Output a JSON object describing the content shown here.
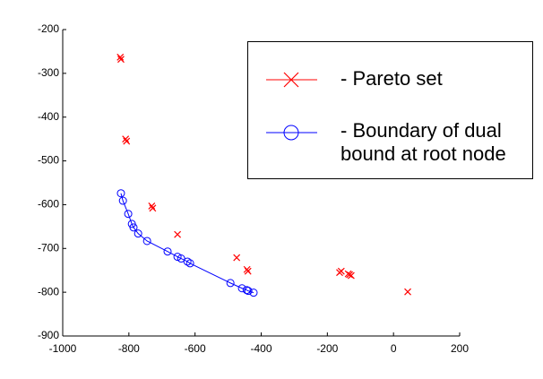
{
  "chart_data": {
    "type": "scatter",
    "xlim": [
      -1000,
      200
    ],
    "xticks": [
      -1000,
      -800,
      -600,
      -400,
      -200,
      0,
      200
    ],
    "ylim": [
      -900,
      -200
    ],
    "yticks": [
      -200,
      -300,
      -400,
      -500,
      -600,
      -700,
      -800,
      -900
    ],
    "legend": "upper right",
    "series": [
      {
        "name": "- Pareto set",
        "color": "#ff0000",
        "marker": "x",
        "line": false,
        "x": [
          -826,
          -824,
          -810,
          -807,
          -731,
          -728,
          -653,
          -474,
          -443,
          -440,
          -163,
          -158,
          -137,
          -133,
          -128,
          43
        ],
        "values": [
          -263,
          -268,
          -450,
          -455,
          -603,
          -608,
          -668,
          -721,
          -748,
          -752,
          -755,
          -752,
          -758,
          -760,
          -762,
          -799
        ]
      },
      {
        "name": "- Boundary of dual\nbound at root node",
        "color": "#0000ff",
        "marker": "o",
        "line": true,
        "x": [
          -824,
          -818,
          -802,
          -791,
          -786,
          -772,
          -745,
          -683,
          -653,
          -642,
          -623,
          -615,
          -493,
          -458,
          -444,
          -439,
          -423
        ],
        "values": [
          -574,
          -591,
          -621,
          -644,
          -652,
          -666,
          -683,
          -707,
          -719,
          -723,
          -730,
          -734,
          -779,
          -791,
          -795,
          -797,
          -801
        ]
      }
    ]
  }
}
